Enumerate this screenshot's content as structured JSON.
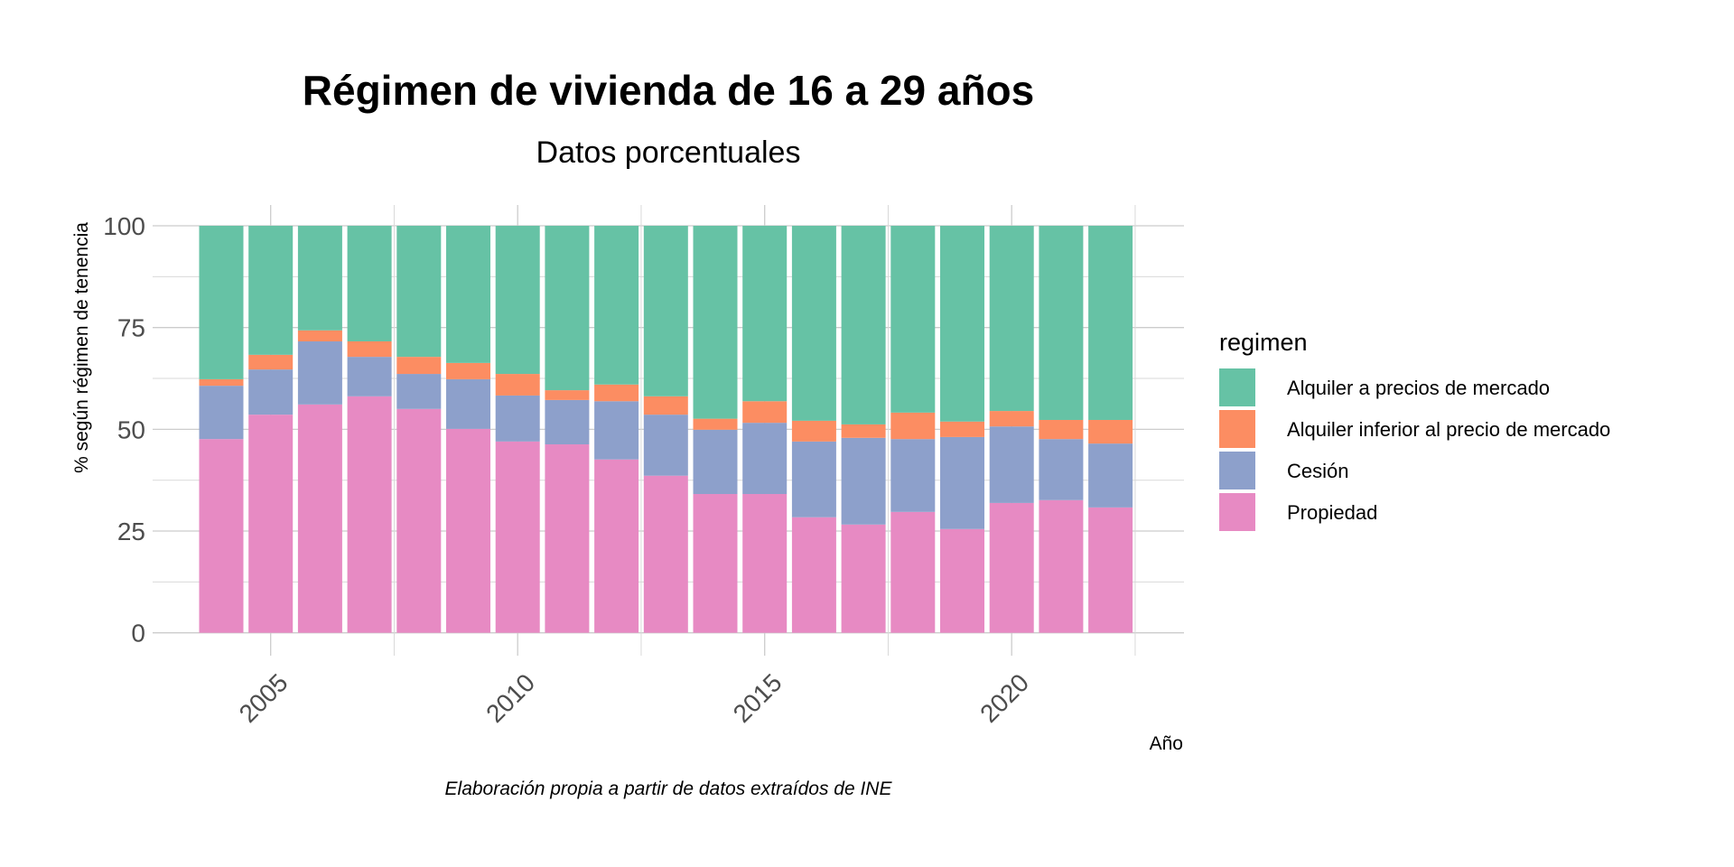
{
  "chart_data": {
    "type": "bar",
    "stacked": true,
    "title": "Régimen de vivienda de 16 a 29 años",
    "subtitle": "Datos porcentuales",
    "xlabel": "Año",
    "ylabel": "% según régimen de tenencia",
    "caption": "Elaboración propia a partir de datos extraídos de INE",
    "ylim": [
      0,
      100
    ],
    "yticks": [
      0,
      25,
      50,
      75,
      100
    ],
    "ytick_labels": [
      "0",
      "25",
      "50",
      "75",
      "100"
    ],
    "xticks": [
      2005,
      2010,
      2015,
      2020
    ],
    "xtick_labels": [
      "2005",
      "2010",
      "2015",
      "2020"
    ],
    "grid": true,
    "legend": {
      "title": "regimen",
      "position": "right"
    },
    "categories": [
      2004,
      2005,
      2006,
      2007,
      2008,
      2009,
      2010,
      2011,
      2012,
      2013,
      2014,
      2015,
      2016,
      2017,
      2018,
      2019,
      2020,
      2021,
      2022
    ],
    "series": [
      {
        "name": "Propiedad",
        "color": "#e78ac3",
        "values": [
          47.6,
          53.6,
          56.1,
          58.1,
          55.0,
          50.1,
          47.0,
          46.3,
          42.6,
          38.6,
          34.1,
          34.1,
          28.4,
          26.6,
          29.7,
          25.5,
          31.9,
          32.6,
          30.8
        ]
      },
      {
        "name": "Cesión",
        "color": "#8da0cb",
        "values": [
          13.1,
          11.1,
          15.5,
          9.7,
          8.6,
          12.2,
          11.3,
          10.9,
          14.3,
          15.0,
          15.8,
          17.5,
          18.6,
          21.3,
          17.9,
          22.6,
          18.8,
          15.0,
          15.7
        ]
      },
      {
        "name": "Alquiler inferior al precio de mercado",
        "color": "#fc8d62",
        "values": [
          1.6,
          3.6,
          2.7,
          3.8,
          4.2,
          4.0,
          5.3,
          2.4,
          4.1,
          4.5,
          2.7,
          5.3,
          5.1,
          3.3,
          6.5,
          3.8,
          3.8,
          4.7,
          5.8
        ]
      },
      {
        "name": "Alquiler a precios de mercado",
        "color": "#66c2a5",
        "values": [
          37.7,
          31.7,
          25.7,
          28.4,
          32.2,
          33.7,
          36.4,
          40.4,
          39.0,
          41.9,
          47.4,
          43.1,
          47.9,
          48.8,
          45.9,
          48.1,
          45.5,
          47.7,
          47.7
        ]
      }
    ],
    "legend_order": [
      "Alquiler a precios de mercado",
      "Alquiler inferior al precio de mercado",
      "Cesión",
      "Propiedad"
    ]
  }
}
